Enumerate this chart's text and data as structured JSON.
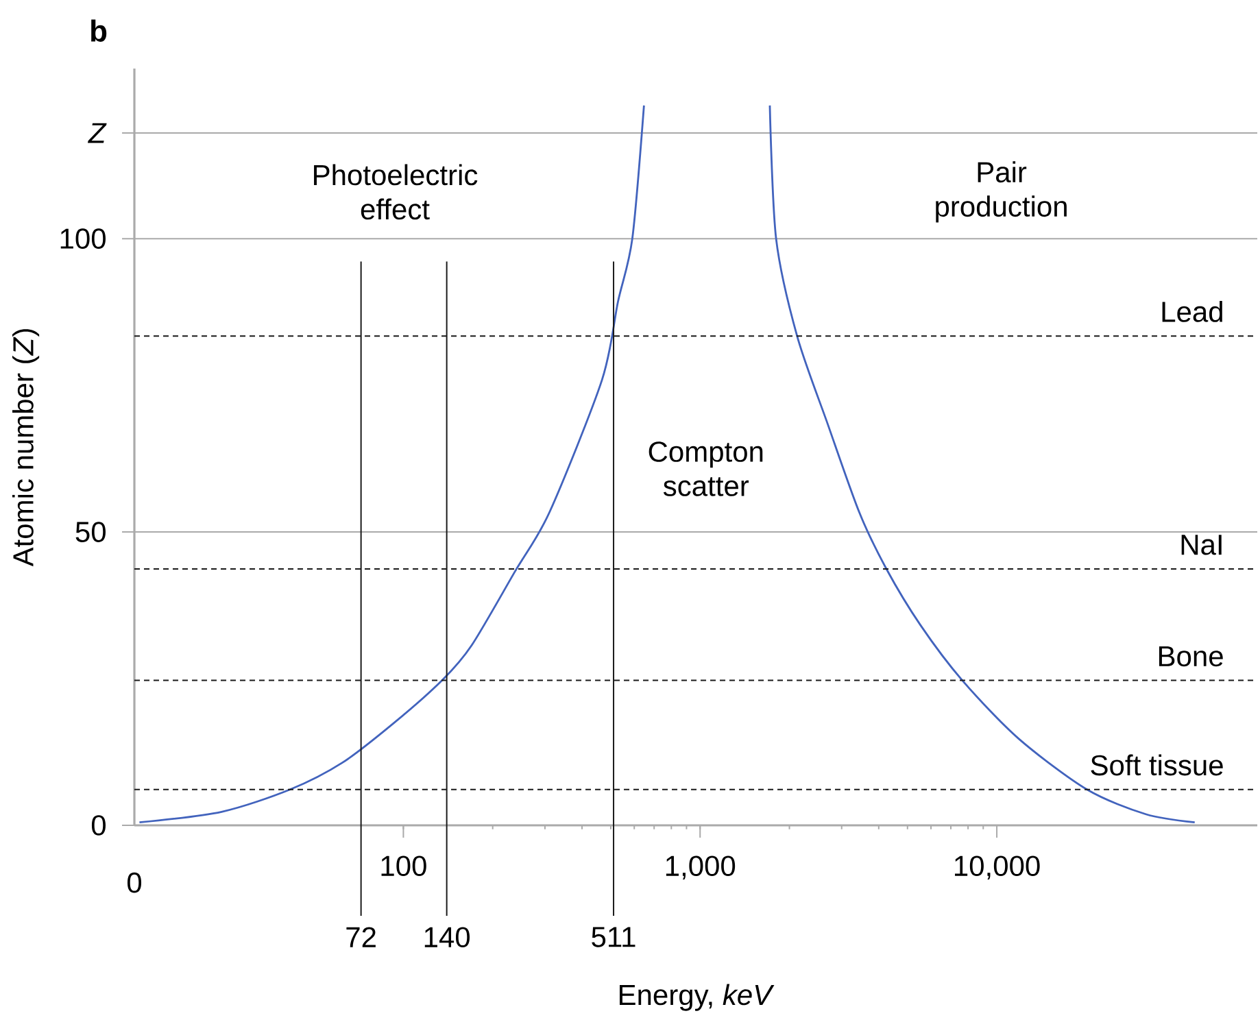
{
  "chart_data": {
    "type": "line",
    "xlabel": "Energy, *keV*",
    "ylabel": "Atomic number (*Z*)",
    "log": "x",
    "xlim": [
      12.4,
      75500
    ],
    "ylim": [
      0,
      129
    ],
    "xticks": [
      100,
      {
        "value": 1000,
        "label": "1,000"
      },
      {
        "value": 10000,
        "label": "10,000"
      }
    ],
    "yticks": [
      0,
      50,
      100,
      {
        "value": 118,
        "label": "*Z*"
      }
    ],
    "grid": "y",
    "marker": "none",
    "line_style": "solid",
    "series": [
      {
        "color": "#4263bd",
        "x": [
          12.9,
          24.4,
          41.5,
          62.4,
          92.2,
          135,
          170,
          238,
          311,
          467,
          529,
          591,
          647
        ],
        "values": [
          0.5,
          2.3,
          6.1,
          10.7,
          17.3,
          24.7,
          30.7,
          43.3,
          53.4,
          75.9,
          89.3,
          100,
          122.7
        ]
      },
      {
        "color": "#4263bd",
        "x": [
          1718,
          1804,
          2123,
          2692,
          3443,
          4246,
          5534,
          7653,
          11830,
          20140,
          31770,
          46450
        ],
        "values": [
          122.7,
          100,
          83.4,
          68.4,
          53.3,
          43.7,
          34.1,
          24.7,
          14.8,
          6.1,
          1.9,
          0.5
        ]
      }
    ],
    "ref_lines": [
      {
        "axis": "x",
        "value": 72,
        "label": "72",
        "color": "#1a1a1a",
        "line_style": "solid"
      },
      {
        "axis": "x",
        "value": 140,
        "label": "140",
        "color": "#1a1a1a",
        "line_style": "solid"
      },
      {
        "axis": "x",
        "value": 511,
        "label": "511",
        "color": "#1a1a1a",
        "line_style": "solid"
      },
      {
        "axis": "y",
        "value": 83.4,
        "label": "Lead",
        "color": "#1a1a1a",
        "line_style": "dashed"
      },
      {
        "axis": "y",
        "value": 43.7,
        "label": "NaI",
        "color": "#1a1a1a",
        "line_style": "dashed"
      },
      {
        "axis": "y",
        "value": 24.7,
        "label": "Bone",
        "color": "#1a1a1a",
        "line_style": "dashed"
      },
      {
        "axis": "y",
        "value": 6.1,
        "label": "Soft tissue",
        "color": "#1a1a1a",
        "line_style": "dashed"
      }
    ],
    "annotations": [
      "**b**",
      "Photoelectric effect",
      "Compton scatter",
      "Pair production",
      "0"
    ]
  }
}
